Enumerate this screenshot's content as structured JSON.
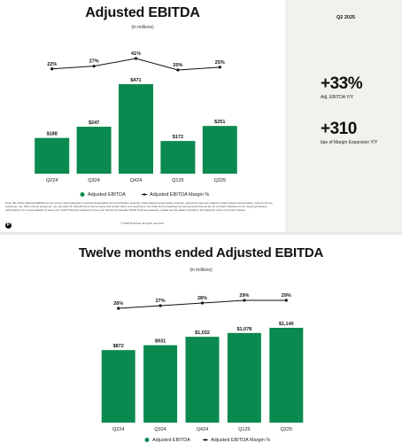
{
  "slide1": {
    "title": "Adjusted EBITDA",
    "subtitle": "(in millions)",
    "quarter_label": "Q2 2025",
    "stats": [
      {
        "value": "+33%",
        "caption": "Adj. EBITDA Y/Y"
      },
      {
        "value": "+310",
        "caption": "bps of Margin Expansion Y/Y"
      }
    ],
    "footnote": "Note: We define Adjusted EBITDA as net income (loss) adjusted to exclude depreciation and amortization expense, share-based compensation expense, payroll tax expense related to share-based compensation, interest income (expense), net, other income (expense), net, provision for (benefit from) income taxes and certain other non-recurring or non-cash items impacting net income (loss) that we do not consider indicative of our ongoing business performance. For a reconciliation of these non-GAAP financial measures to the most directly comparable GAAP financial measures, please see the tables included in the Appendix at the end of this release.",
    "copyright": "© 2025 Pinterest. All rights reserved.",
    "logo_glyph": "P"
  },
  "slide2": {
    "title": "Twelve months ended Adjusted EBITDA",
    "subtitle": "(in millions)"
  },
  "colors": {
    "bar": "#0a8a4f",
    "line": "#111111"
  },
  "chart_data": [
    {
      "type": "bar",
      "categories": [
        "Q224",
        "Q324",
        "Q424",
        "Q125",
        "Q225"
      ],
      "series": [
        {
          "name": "Adjusted EBITDA",
          "values": [
            188,
            247,
            471,
            172,
            251
          ],
          "labels": [
            "$188",
            "$247",
            "$471",
            "$172",
            "$251"
          ]
        },
        {
          "name": "Adjusted EBITDA Margin %",
          "values": [
            22,
            27,
            41,
            20,
            25
          ],
          "labels": [
            "22%",
            "27%",
            "41%",
            "20%",
            "25%"
          ],
          "kind": "line"
        }
      ],
      "ylim": [
        0,
        471
      ]
    },
    {
      "type": "bar",
      "categories": [
        "Q224",
        "Q324",
        "Q424",
        "Q125",
        "Q225"
      ],
      "series": [
        {
          "name": "Adjusted EBITDA",
          "values": [
            872,
            931,
            1032,
            1078,
            1140
          ],
          "labels": [
            "$872",
            "$931",
            "$1,032",
            "$1,078",
            "$1,140"
          ]
        },
        {
          "name": "Adjusted EBITDA Margin %",
          "values": [
            26,
            27,
            28,
            29,
            29
          ],
          "labels": [
            "26%",
            "27%",
            "28%",
            "29%",
            "29%"
          ],
          "kind": "line"
        }
      ],
      "ylim": [
        0,
        1140
      ]
    }
  ]
}
